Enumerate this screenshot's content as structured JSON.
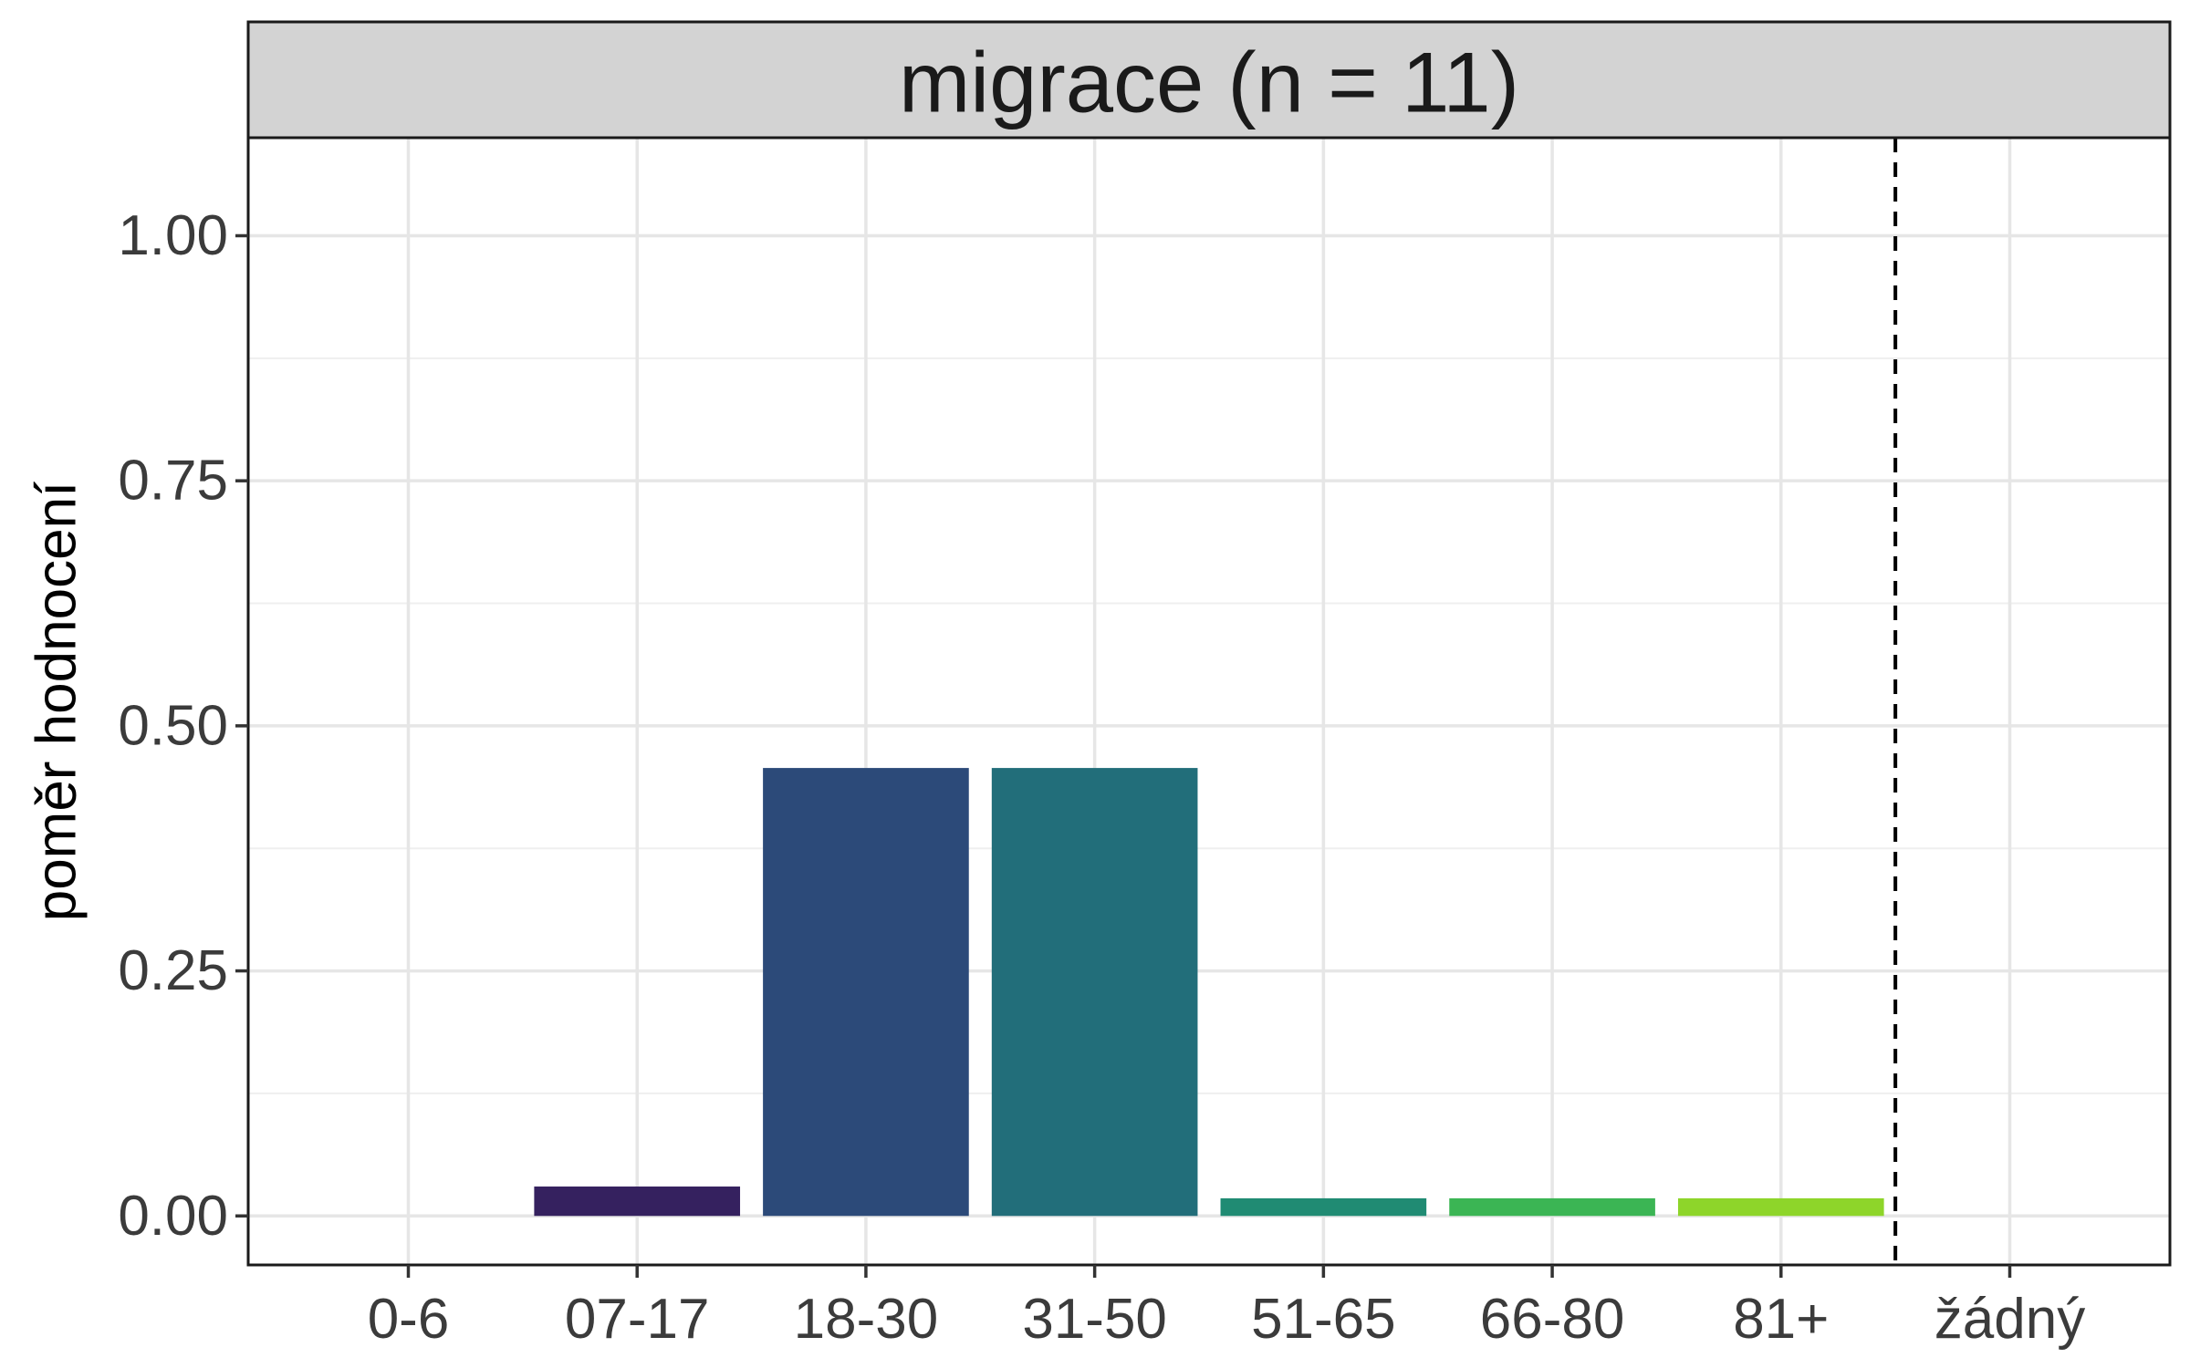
{
  "chart_data": {
    "type": "bar",
    "title": "migrace (n = 11)",
    "xlabel": "",
    "ylabel": "poměr hodnocení",
    "categories": [
      "0-6",
      "07-17",
      "18-30",
      "31-50",
      "51-65",
      "66-80",
      "81+",
      "žádný"
    ],
    "values": [
      0,
      0.03,
      0.457,
      0.457,
      0.018,
      0.018,
      0.018,
      0
    ],
    "colors": [
      "#440154",
      "#35215f",
      "#2c4a79",
      "#226e7a",
      "#208b73",
      "#3bb554",
      "#8ed52a",
      "#fde725"
    ],
    "ylim": [
      -0.05,
      1.1
    ],
    "yticks": [
      0,
      0.25,
      0.5,
      0.75,
      1.0
    ],
    "ytick_labels": [
      "0.00",
      "0.25",
      "0.50",
      "0.75",
      "1.00"
    ],
    "separator_after_category": "81+",
    "grid": true,
    "legend": "none"
  }
}
